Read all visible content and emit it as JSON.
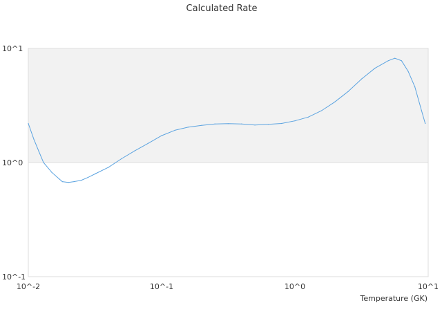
{
  "chart_data": {
    "type": "line",
    "title": "Calculated Rate",
    "xlabel": "Temperature (GK)",
    "ylabel": "",
    "xscale": "log",
    "yscale": "log",
    "xlim": [
      0.01,
      10
    ],
    "ylim": [
      0.1,
      10
    ],
    "xticks": [
      {
        "value": 0.01,
        "label": "10^-2"
      },
      {
        "value": 0.1,
        "label": "10^-1"
      },
      {
        "value": 1,
        "label": "10^0"
      },
      {
        "value": 10,
        "label": "10^1"
      }
    ],
    "yticks": [
      {
        "value": 0.1,
        "label": "10^-1"
      },
      {
        "value": 1,
        "label": "10^0"
      },
      {
        "value": 10,
        "label": "10^1"
      }
    ],
    "shaded_band": {
      "y_from": 1,
      "y_to": 10,
      "color": "#f2f2f2"
    },
    "grid": false,
    "legend": "none",
    "colors": {
      "line": "#5ba3e0",
      "band": "#f2f2f2",
      "axis": "#dddddd",
      "text": "#333333"
    },
    "series": [
      {
        "values": [
          {
            "x": 0.01,
            "y": 2.2
          },
          {
            "x": 0.011,
            "y": 1.6
          },
          {
            "x": 0.012,
            "y": 1.25
          },
          {
            "x": 0.013,
            "y": 1.0
          },
          {
            "x": 0.015,
            "y": 0.82
          },
          {
            "x": 0.017,
            "y": 0.72
          },
          {
            "x": 0.018,
            "y": 0.68
          },
          {
            "x": 0.02,
            "y": 0.67
          },
          {
            "x": 0.022,
            "y": 0.68
          },
          {
            "x": 0.025,
            "y": 0.7
          },
          {
            "x": 0.028,
            "y": 0.74
          },
          {
            "x": 0.032,
            "y": 0.8
          },
          {
            "x": 0.04,
            "y": 0.91
          },
          {
            "x": 0.05,
            "y": 1.08
          },
          {
            "x": 0.063,
            "y": 1.27
          },
          {
            "x": 0.079,
            "y": 1.47
          },
          {
            "x": 0.1,
            "y": 1.72
          },
          {
            "x": 0.126,
            "y": 1.92
          },
          {
            "x": 0.158,
            "y": 2.04
          },
          {
            "x": 0.2,
            "y": 2.12
          },
          {
            "x": 0.251,
            "y": 2.18
          },
          {
            "x": 0.316,
            "y": 2.19
          },
          {
            "x": 0.398,
            "y": 2.18
          },
          {
            "x": 0.501,
            "y": 2.13
          },
          {
            "x": 0.631,
            "y": 2.16
          },
          {
            "x": 0.794,
            "y": 2.2
          },
          {
            "x": 1.0,
            "y": 2.32
          },
          {
            "x": 1.259,
            "y": 2.5
          },
          {
            "x": 1.585,
            "y": 2.85
          },
          {
            "x": 1.995,
            "y": 3.4
          },
          {
            "x": 2.512,
            "y": 4.2
          },
          {
            "x": 3.162,
            "y": 5.4
          },
          {
            "x": 3.981,
            "y": 6.7
          },
          {
            "x": 5.012,
            "y": 7.8
          },
          {
            "x": 5.623,
            "y": 8.2
          },
          {
            "x": 6.31,
            "y": 7.8
          },
          {
            "x": 7.079,
            "y": 6.3
          },
          {
            "x": 7.943,
            "y": 4.6
          },
          {
            "x": 8.913,
            "y": 2.85
          },
          {
            "x": 9.5,
            "y": 2.2
          }
        ]
      }
    ]
  }
}
